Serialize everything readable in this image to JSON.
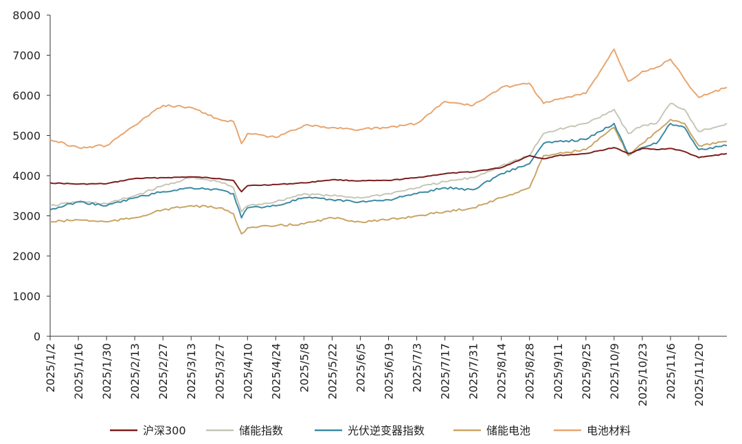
{
  "chart_data": {
    "type": "line",
    "title": "",
    "xlabel": "",
    "ylabel": "",
    "ylim": [
      0,
      8000
    ],
    "yticks": [
      0,
      1000,
      2000,
      3000,
      4000,
      5000,
      6000,
      7000,
      8000
    ],
    "grid": false,
    "legend_position": "bottom",
    "x_tick_labels": [
      "2025/1/2",
      "2025/1/16",
      "2025/1/30",
      "2025/2/13",
      "2025/2/27",
      "2025/3/13",
      "2025/3/27",
      "2025/4/10",
      "2025/4/24",
      "2025/5/8",
      "2025/5/22",
      "2025/6/5",
      "2025/6/19",
      "2025/7/3",
      "2025/7/17",
      "2025/7/31",
      "2025/8/14",
      "2025/8/28",
      "2025/9/11",
      "2025/9/25",
      "2025/10/9",
      "2025/10/23",
      "2025/11/6",
      "2025/11/20"
    ],
    "x": [
      "2025/1/2",
      "2025/1/16",
      "2025/1/30",
      "2025/2/13",
      "2025/2/27",
      "2025/3/13",
      "2025/3/27",
      "2025/4/3",
      "2025/4/7",
      "2025/4/10",
      "2025/4/24",
      "2025/5/8",
      "2025/5/22",
      "2025/6/5",
      "2025/6/19",
      "2025/7/3",
      "2025/7/17",
      "2025/7/31",
      "2025/8/14",
      "2025/8/28",
      "2025/9/4",
      "2025/9/11",
      "2025/9/25",
      "2025/10/9",
      "2025/10/16",
      "2025/10/23",
      "2025/10/30",
      "2025/11/6",
      "2025/11/13",
      "2025/11/20",
      "2025/12/4"
    ],
    "series": [
      {
        "name": "沪深300",
        "color": "#7b1c1c",
        "values": [
          3820,
          3790,
          3800,
          3930,
          3950,
          3970,
          3930,
          3880,
          3600,
          3750,
          3780,
          3820,
          3900,
          3870,
          3880,
          3950,
          4050,
          4100,
          4200,
          4500,
          4420,
          4500,
          4550,
          4700,
          4550,
          4680,
          4650,
          4680,
          4600,
          4450,
          4550
        ]
      },
      {
        "name": "储能指数",
        "color": "#c6c6b7",
        "values": [
          3250,
          3350,
          3300,
          3500,
          3750,
          3950,
          3850,
          3700,
          3100,
          3250,
          3350,
          3550,
          3500,
          3450,
          3550,
          3700,
          3850,
          3950,
          4250,
          4500,
          5050,
          5150,
          5300,
          5650,
          5050,
          5250,
          5300,
          5800,
          5650,
          5100,
          5300
        ]
      },
      {
        "name": "光伏逆变器指数",
        "color": "#3a8aa3",
        "values": [
          3150,
          3350,
          3250,
          3450,
          3600,
          3700,
          3650,
          3550,
          2950,
          3200,
          3250,
          3450,
          3400,
          3350,
          3400,
          3550,
          3700,
          3650,
          4050,
          4300,
          4800,
          4850,
          4900,
          5300,
          4550,
          4700,
          4800,
          5300,
          5200,
          4650,
          4750
        ]
      },
      {
        "name": "储能电池",
        "color": "#c9a463",
        "values": [
          2850,
          2900,
          2850,
          2950,
          3150,
          3250,
          3200,
          3050,
          2550,
          2700,
          2750,
          2800,
          2950,
          2850,
          2900,
          3000,
          3100,
          3200,
          3450,
          3700,
          4500,
          4550,
          4650,
          5200,
          4500,
          4800,
          5100,
          5400,
          5300,
          4750,
          4850
        ]
      },
      {
        "name": "电池材料",
        "color": "#e8a56e",
        "values": [
          4900,
          4700,
          4750,
          5250,
          5750,
          5700,
          5400,
          5350,
          4800,
          5050,
          4950,
          5250,
          5200,
          5150,
          5200,
          5300,
          5850,
          5750,
          6200,
          6300,
          5800,
          5900,
          6050,
          7150,
          6350,
          6600,
          6700,
          6900,
          6400,
          5950,
          6200
        ]
      }
    ]
  }
}
